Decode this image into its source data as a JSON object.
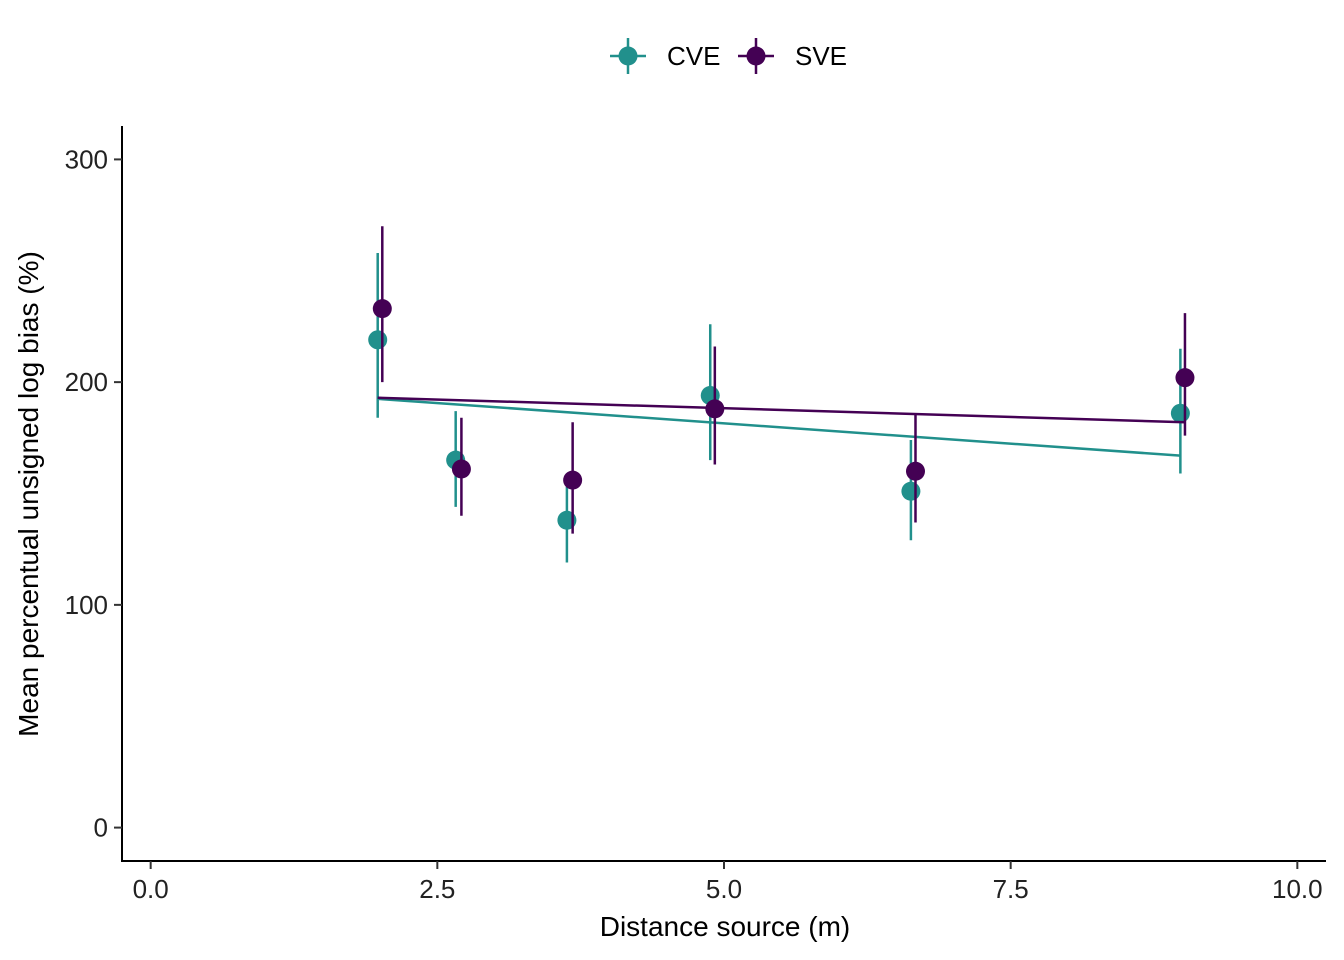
{
  "chart_data": {
    "type": "scatter",
    "x_label": "Distance source (m)",
    "y_label": "Mean percentual unsigned log bias (%)",
    "x_ticks": [
      "0.0",
      "2.5",
      "5.0",
      "7.5",
      "10.0"
    ],
    "y_ticks": [
      "0",
      "100",
      "200",
      "300"
    ],
    "xlim": [
      -0.25,
      10.25
    ],
    "ylim": [
      -15,
      315
    ],
    "legend_position": "top",
    "grid": false,
    "series": [
      {
        "name": "CVE",
        "color": "#21908C",
        "points": [
          {
            "x": 1.98,
            "y": 219,
            "ymin": 184,
            "ymax": 258
          },
          {
            "x": 2.66,
            "y": 165,
            "ymin": 144,
            "ymax": 187
          },
          {
            "x": 3.63,
            "y": 138,
            "ymin": 119,
            "ymax": 153
          },
          {
            "x": 4.88,
            "y": 194,
            "ymin": 165,
            "ymax": 226
          },
          {
            "x": 6.63,
            "y": 151,
            "ymin": 129,
            "ymax": 174
          },
          {
            "x": 8.98,
            "y": 186,
            "ymin": 159,
            "ymax": 215
          }
        ],
        "trend": {
          "x": [
            1.98,
            8.98
          ],
          "y": [
            192.5,
            167
          ]
        }
      },
      {
        "name": "SVE",
        "color": "#440154",
        "points": [
          {
            "x": 2.02,
            "y": 233,
            "ymin": 200,
            "ymax": 270
          },
          {
            "x": 2.71,
            "y": 161,
            "ymin": 140,
            "ymax": 184
          },
          {
            "x": 3.68,
            "y": 156,
            "ymin": 132,
            "ymax": 182
          },
          {
            "x": 4.92,
            "y": 188,
            "ymin": 163,
            "ymax": 216
          },
          {
            "x": 6.67,
            "y": 160,
            "ymin": 137,
            "ymax": 186
          },
          {
            "x": 9.02,
            "y": 202,
            "ymin": 176,
            "ymax": 231
          }
        ],
        "trend": {
          "x": [
            1.98,
            9.02
          ],
          "y": [
            193,
            182
          ]
        }
      }
    ]
  }
}
